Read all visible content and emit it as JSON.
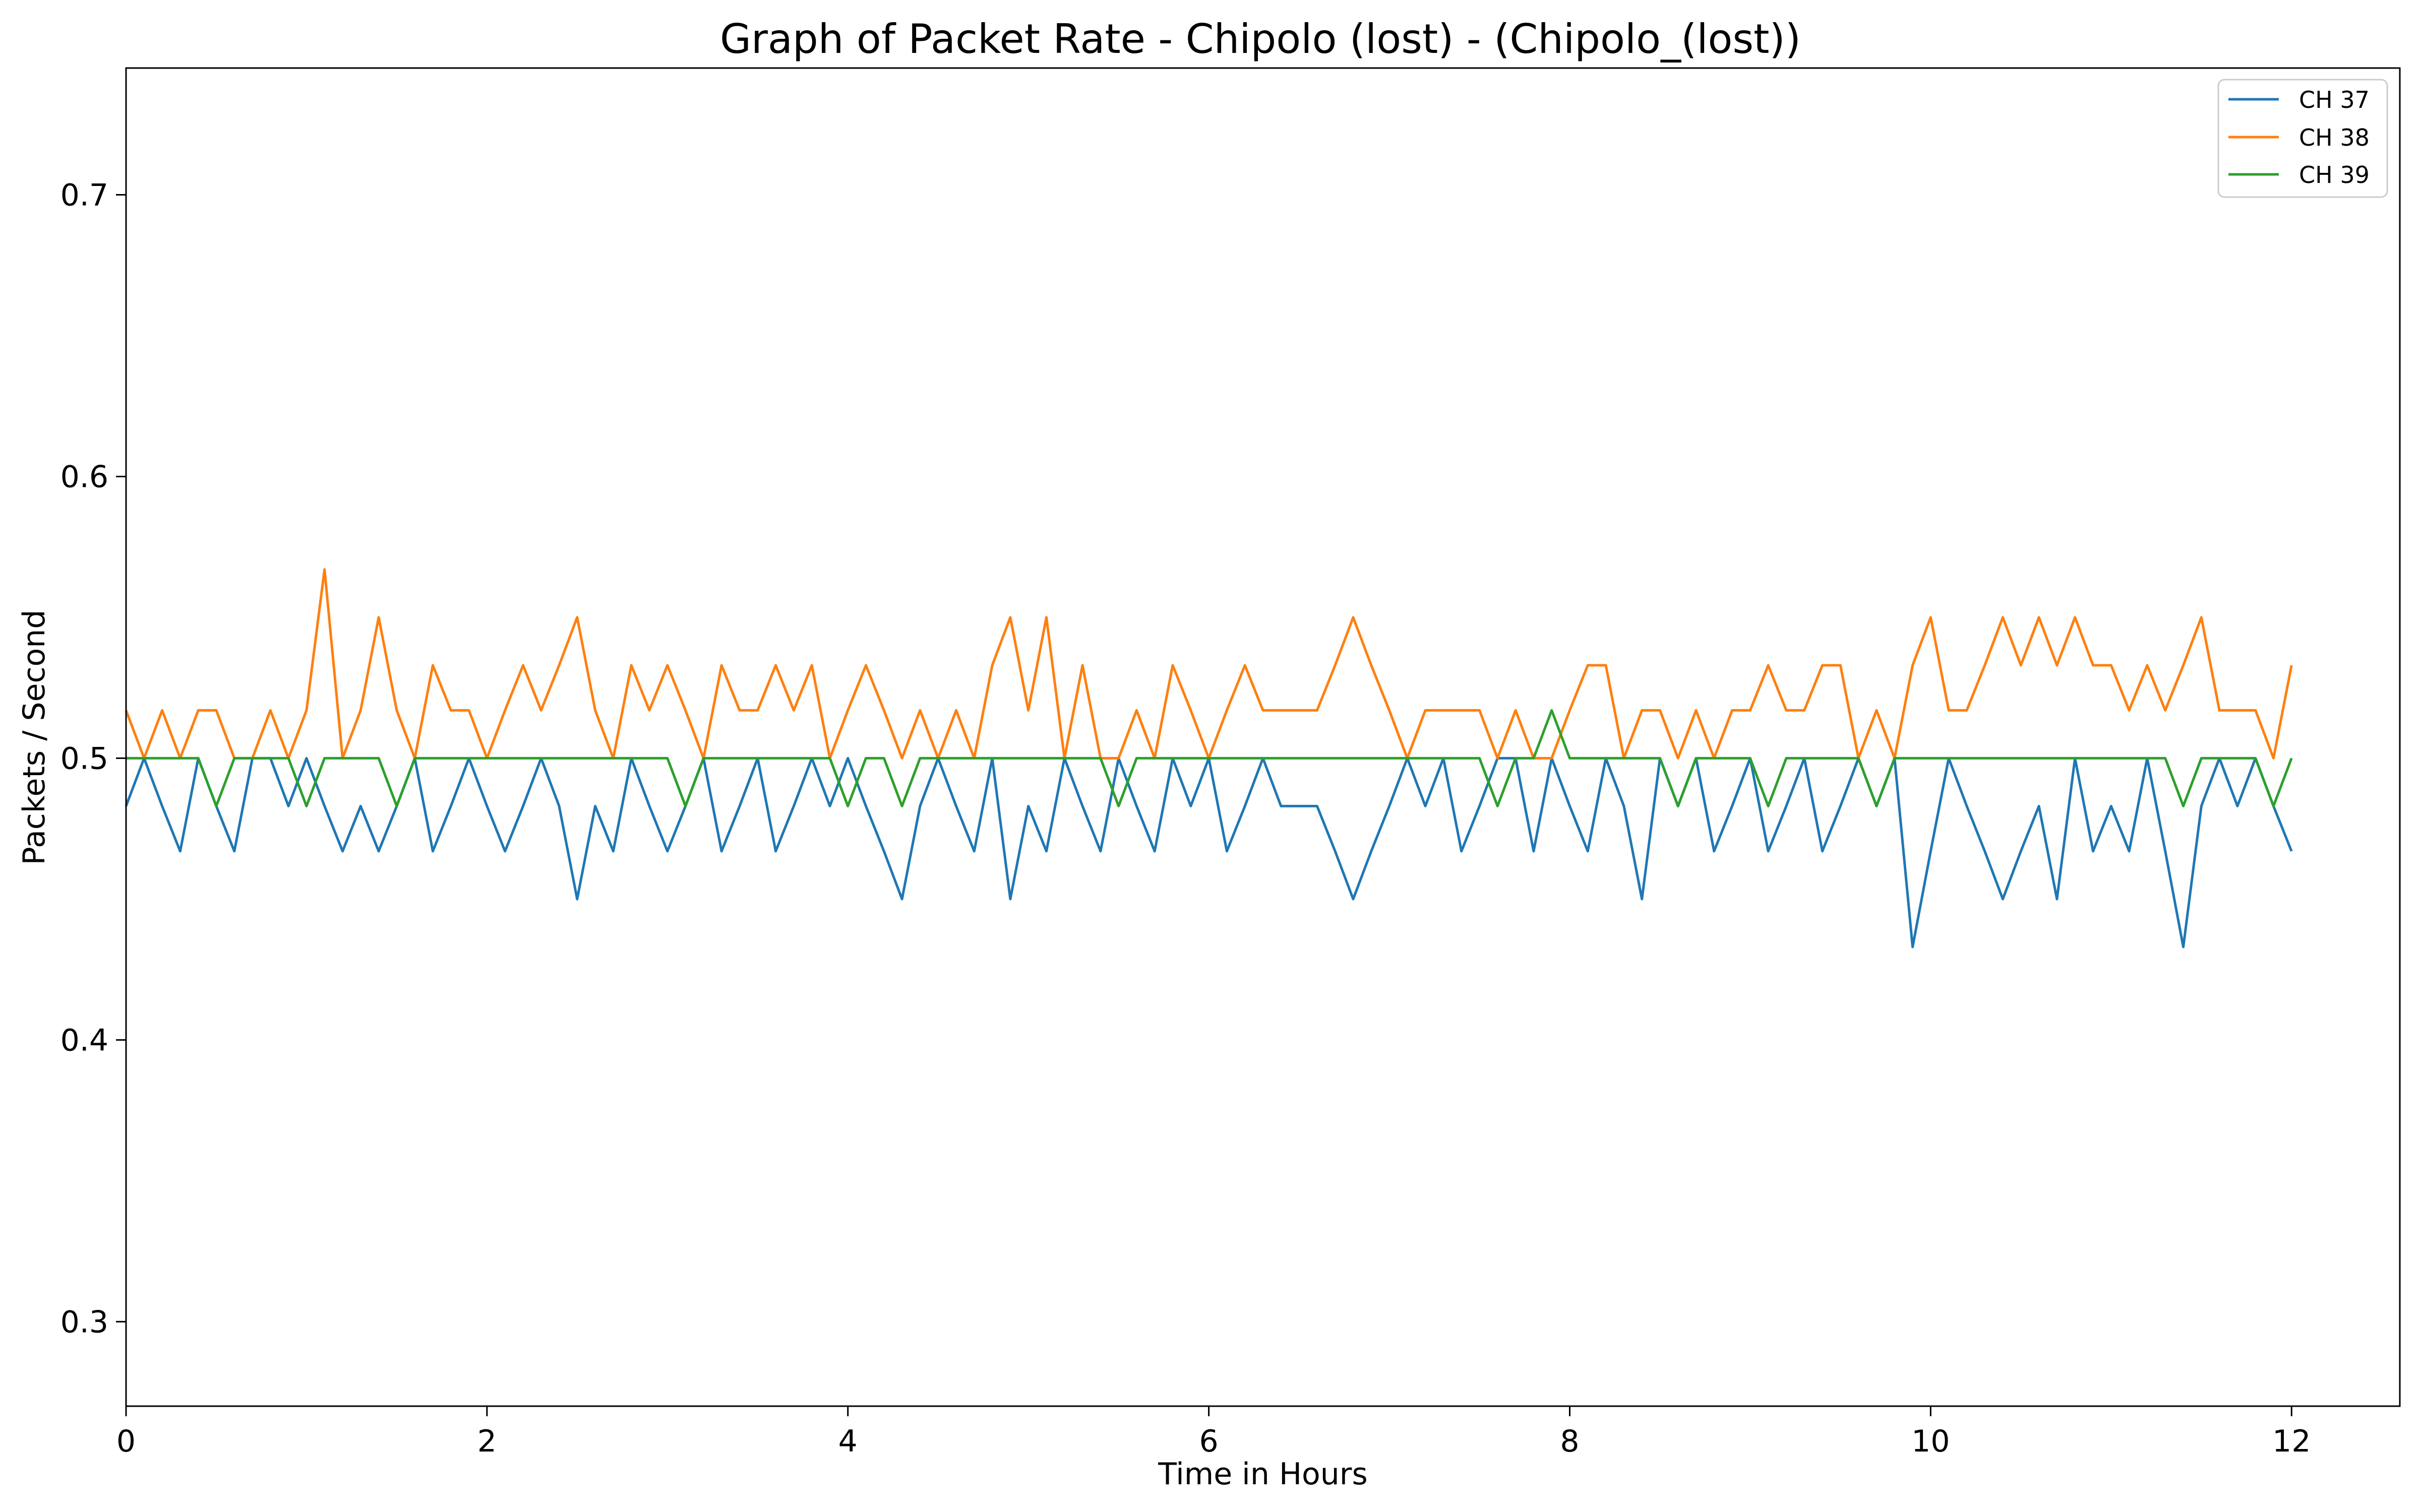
{
  "chart_data": {
    "type": "line",
    "title": "Graph of Packet Rate - Chipolo (lost) - (Chipolo_(lost))",
    "xlabel": "Time in Hours",
    "ylabel": "Packets / Second",
    "xlim": [
      0,
      12.6
    ],
    "ylim": [
      0.27,
      0.745
    ],
    "xticks": [
      0,
      2,
      4,
      6,
      8,
      10,
      12
    ],
    "yticks": [
      0.3,
      0.4,
      0.5,
      0.6,
      0.7
    ],
    "xtick_labels": [
      "0",
      "2",
      "4",
      "6",
      "8",
      "10",
      "12"
    ],
    "ytick_labels": [
      "0.3",
      "0.4",
      "0.5",
      "0.6",
      "0.7"
    ],
    "grid": false,
    "legend_position": "top-right",
    "series": [
      {
        "name": "CH 37",
        "color": "#1f77b4",
        "x": [
          0.0,
          0.1,
          0.2,
          0.3,
          0.4,
          0.5,
          0.6,
          0.7,
          0.8,
          0.9,
          1.0,
          1.1,
          1.2,
          1.3,
          1.4,
          1.5,
          1.6,
          1.7,
          1.8,
          1.9,
          2.0,
          2.1,
          2.2,
          2.3,
          2.4,
          2.5,
          2.6,
          2.7,
          2.8,
          2.9,
          3.0,
          3.1,
          3.2,
          3.3,
          3.4,
          3.5,
          3.6,
          3.7,
          3.8,
          3.9,
          4.0,
          4.1,
          4.2,
          4.3,
          4.4,
          4.5,
          4.6,
          4.7,
          4.8,
          4.9,
          5.0,
          5.1,
          5.2,
          5.3,
          5.4,
          5.5,
          5.6,
          5.7,
          5.8,
          5.9,
          6.0,
          6.1,
          6.2,
          6.3,
          6.4,
          6.5,
          6.6,
          6.7,
          6.8,
          6.9,
          7.0,
          7.1,
          7.2,
          7.3,
          7.4,
          7.5,
          7.6,
          7.7,
          7.8,
          7.9,
          8.0,
          8.1,
          8.2,
          8.3,
          8.4,
          8.5,
          8.6,
          8.7,
          8.8,
          8.9,
          9.0,
          9.1,
          9.2,
          9.3,
          9.4,
          9.5,
          9.6,
          9.7,
          9.8,
          9.9,
          10.0,
          10.1,
          10.2,
          10.3,
          10.4,
          10.5,
          10.6,
          10.7,
          10.8,
          10.9,
          11.0,
          11.1,
          11.2,
          11.3,
          11.4,
          11.5,
          11.6,
          11.7,
          11.8,
          11.9,
          12.0
        ],
        "values": [
          0.483,
          0.5,
          0.483,
          0.467,
          0.5,
          0.483,
          0.467,
          0.5,
          0.5,
          0.483,
          0.5,
          0.483,
          0.467,
          0.483,
          0.467,
          0.483,
          0.5,
          0.467,
          0.483,
          0.5,
          0.483,
          0.467,
          0.483,
          0.5,
          0.483,
          0.45,
          0.483,
          0.467,
          0.5,
          0.483,
          0.467,
          0.483,
          0.5,
          0.467,
          0.483,
          0.5,
          0.467,
          0.483,
          0.5,
          0.483,
          0.5,
          0.483,
          0.467,
          0.45,
          0.483,
          0.5,
          0.483,
          0.467,
          0.5,
          0.45,
          0.483,
          0.467,
          0.5,
          0.483,
          0.467,
          0.5,
          0.483,
          0.467,
          0.5,
          0.483,
          0.5,
          0.467,
          0.483,
          0.5,
          0.483,
          0.483,
          0.483,
          0.467,
          0.45,
          0.467,
          0.483,
          0.5,
          0.483,
          0.5,
          0.467,
          0.483,
          0.5,
          0.5,
          0.467,
          0.5,
          0.483,
          0.467,
          0.5,
          0.483,
          0.45,
          0.5,
          0.483,
          0.5,
          0.467,
          0.483,
          0.5,
          0.467,
          0.483,
          0.5,
          0.467,
          0.483,
          0.5,
          0.483,
          0.5,
          0.433,
          0.467,
          0.5,
          0.483,
          0.467,
          0.45,
          0.467,
          0.483,
          0.45,
          0.5,
          0.467,
          0.483,
          0.467,
          0.5,
          0.467,
          0.433,
          0.483,
          0.5,
          0.483,
          0.5,
          0.483,
          0.467
        ]
      },
      {
        "name": "CH 38",
        "color": "#ff7f0e",
        "x": [
          0.0,
          0.1,
          0.2,
          0.3,
          0.4,
          0.5,
          0.6,
          0.7,
          0.8,
          0.9,
          1.0,
          1.1,
          1.2,
          1.3,
          1.4,
          1.5,
          1.6,
          1.7,
          1.8,
          1.9,
          2.0,
          2.1,
          2.2,
          2.3,
          2.4,
          2.5,
          2.6,
          2.7,
          2.8,
          2.9,
          3.0,
          3.1,
          3.2,
          3.3,
          3.4,
          3.5,
          3.6,
          3.7,
          3.8,
          3.9,
          4.0,
          4.1,
          4.2,
          4.3,
          4.4,
          4.5,
          4.6,
          4.7,
          4.8,
          4.9,
          5.0,
          5.1,
          5.2,
          5.3,
          5.4,
          5.5,
          5.6,
          5.7,
          5.8,
          5.9,
          6.0,
          6.1,
          6.2,
          6.3,
          6.4,
          6.5,
          6.6,
          6.7,
          6.8,
          6.9,
          7.0,
          7.1,
          7.2,
          7.3,
          7.4,
          7.5,
          7.6,
          7.7,
          7.8,
          7.9,
          8.0,
          8.1,
          8.2,
          8.3,
          8.4,
          8.5,
          8.6,
          8.7,
          8.8,
          8.9,
          9.0,
          9.1,
          9.2,
          9.3,
          9.4,
          9.5,
          9.6,
          9.7,
          9.8,
          9.9,
          10.0,
          10.1,
          10.2,
          10.3,
          10.4,
          10.5,
          10.6,
          10.7,
          10.8,
          10.9,
          11.0,
          11.1,
          11.2,
          11.3,
          11.4,
          11.5,
          11.6,
          11.7,
          11.8,
          11.9,
          12.0
        ],
        "values": [
          0.517,
          0.5,
          0.517,
          0.5,
          0.517,
          0.517,
          0.5,
          0.5,
          0.517,
          0.5,
          0.517,
          0.567,
          0.5,
          0.517,
          0.55,
          0.517,
          0.5,
          0.533,
          0.517,
          0.517,
          0.5,
          0.517,
          0.533,
          0.517,
          0.533,
          0.55,
          0.517,
          0.5,
          0.533,
          0.517,
          0.533,
          0.517,
          0.5,
          0.533,
          0.517,
          0.517,
          0.533,
          0.517,
          0.533,
          0.5,
          0.517,
          0.533,
          0.517,
          0.5,
          0.517,
          0.5,
          0.517,
          0.5,
          0.533,
          0.55,
          0.517,
          0.55,
          0.5,
          0.533,
          0.5,
          0.5,
          0.517,
          0.5,
          0.533,
          0.517,
          0.5,
          0.517,
          0.533,
          0.517,
          0.517,
          0.517,
          0.517,
          0.533,
          0.55,
          0.533,
          0.517,
          0.5,
          0.517,
          0.517,
          0.517,
          0.517,
          0.5,
          0.517,
          0.5,
          0.5,
          0.517,
          0.533,
          0.533,
          0.5,
          0.517,
          0.517,
          0.5,
          0.517,
          0.5,
          0.517,
          0.517,
          0.533,
          0.517,
          0.517,
          0.533,
          0.533,
          0.5,
          0.517,
          0.5,
          0.533,
          0.55,
          0.517,
          0.517,
          0.533,
          0.55,
          0.533,
          0.55,
          0.533,
          0.55,
          0.533,
          0.533,
          0.517,
          0.533,
          0.517,
          0.533,
          0.55,
          0.517,
          0.517,
          0.517,
          0.5,
          0.533
        ]
      },
      {
        "name": "CH 39",
        "color": "#2ca02c",
        "x": [
          0.0,
          0.1,
          0.2,
          0.3,
          0.4,
          0.5,
          0.6,
          0.7,
          0.8,
          0.9,
          1.0,
          1.1,
          1.2,
          1.3,
          1.4,
          1.5,
          1.6,
          1.7,
          1.8,
          1.9,
          2.0,
          2.1,
          2.2,
          2.3,
          2.4,
          2.5,
          2.6,
          2.7,
          2.8,
          2.9,
          3.0,
          3.1,
          3.2,
          3.3,
          3.4,
          3.5,
          3.6,
          3.7,
          3.8,
          3.9,
          4.0,
          4.1,
          4.2,
          4.3,
          4.4,
          4.5,
          4.6,
          4.7,
          4.8,
          4.9,
          5.0,
          5.1,
          5.2,
          5.3,
          5.4,
          5.5,
          5.6,
          5.7,
          5.8,
          5.9,
          6.0,
          6.1,
          6.2,
          6.3,
          6.4,
          6.5,
          6.6,
          6.7,
          6.8,
          6.9,
          7.0,
          7.1,
          7.2,
          7.3,
          7.4,
          7.5,
          7.6,
          7.7,
          7.8,
          7.9,
          8.0,
          8.1,
          8.2,
          8.3,
          8.4,
          8.5,
          8.6,
          8.7,
          8.8,
          8.9,
          9.0,
          9.1,
          9.2,
          9.3,
          9.4,
          9.5,
          9.6,
          9.7,
          9.8,
          9.9,
          10.0,
          10.1,
          10.2,
          10.3,
          10.4,
          10.5,
          10.6,
          10.7,
          10.8,
          10.9,
          11.0,
          11.1,
          11.2,
          11.3,
          11.4,
          11.5,
          11.6,
          11.7,
          11.8,
          11.9,
          12.0
        ],
        "values": [
          0.5,
          0.5,
          0.5,
          0.5,
          0.5,
          0.483,
          0.5,
          0.5,
          0.5,
          0.5,
          0.483,
          0.5,
          0.5,
          0.5,
          0.5,
          0.483,
          0.5,
          0.5,
          0.5,
          0.5,
          0.5,
          0.5,
          0.5,
          0.5,
          0.5,
          0.5,
          0.5,
          0.5,
          0.5,
          0.5,
          0.5,
          0.483,
          0.5,
          0.5,
          0.5,
          0.5,
          0.5,
          0.5,
          0.5,
          0.5,
          0.483,
          0.5,
          0.5,
          0.483,
          0.5,
          0.5,
          0.5,
          0.5,
          0.5,
          0.5,
          0.5,
          0.5,
          0.5,
          0.5,
          0.5,
          0.483,
          0.5,
          0.5,
          0.5,
          0.5,
          0.5,
          0.5,
          0.5,
          0.5,
          0.5,
          0.5,
          0.5,
          0.5,
          0.5,
          0.5,
          0.5,
          0.5,
          0.5,
          0.5,
          0.5,
          0.5,
          0.483,
          0.5,
          0.5,
          0.517,
          0.5,
          0.5,
          0.5,
          0.5,
          0.5,
          0.5,
          0.483,
          0.5,
          0.5,
          0.5,
          0.5,
          0.483,
          0.5,
          0.5,
          0.5,
          0.5,
          0.5,
          0.483,
          0.5,
          0.5,
          0.5,
          0.5,
          0.5,
          0.5,
          0.5,
          0.5,
          0.5,
          0.5,
          0.5,
          0.5,
          0.5,
          0.5,
          0.5,
          0.5,
          0.483,
          0.5,
          0.5,
          0.5,
          0.5,
          0.483,
          0.5
        ]
      }
    ]
  }
}
